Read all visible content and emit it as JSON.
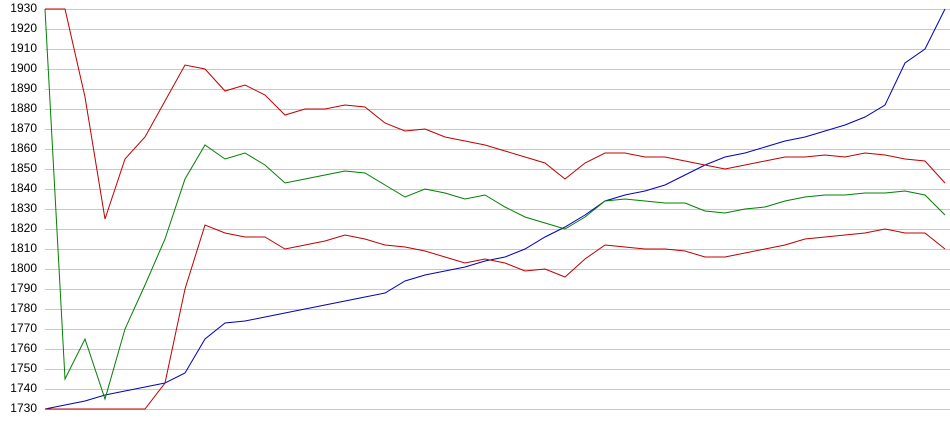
{
  "chart_data": {
    "type": "line",
    "categories": [
      null,
      null,
      null,
      null,
      null,
      null,
      null,
      null,
      null,
      null,
      null,
      null,
      null,
      null,
      null,
      null,
      null,
      null,
      null,
      null,
      null,
      null,
      null,
      null,
      null,
      null,
      null,
      null,
      null,
      null,
      null,
      null,
      null,
      null,
      null,
      null,
      null,
      null,
      null,
      null,
      null,
      null,
      null,
      null,
      null,
      null
    ],
    "series": [
      {
        "color": "#0000c0",
        "values": [
          1730,
          1732,
          1734,
          1737,
          1739,
          1741,
          1743,
          1748,
          1765,
          1773,
          1774,
          1776,
          1778,
          1780,
          1782,
          1784,
          1786,
          1788,
          1794,
          1797,
          1799,
          1801,
          1804,
          1806,
          1810,
          1816,
          1821,
          1827,
          1834,
          1837,
          1839,
          1842,
          1847,
          1852,
          1856,
          1858,
          1861,
          1864,
          1866,
          1869,
          1872,
          1876,
          1882,
          1903,
          1910,
          1930
        ]
      },
      {
        "color": "#008000",
        "values": [
          1930,
          1745,
          1765,
          1735,
          1770,
          1792,
          1815,
          1845,
          1862,
          1855,
          1858,
          1852,
          1843,
          1845,
          1847,
          1849,
          1848,
          1842,
          1836,
          1840,
          1838,
          1835,
          1837,
          1831,
          1826,
          1823,
          1820,
          1826,
          1834,
          1835,
          1834,
          1833,
          1833,
          1829,
          1828,
          1830,
          1831,
          1834,
          1836,
          1837,
          1837,
          1838,
          1838,
          1839,
          1837,
          1827
        ]
      },
      {
        "color": "#c00000",
        "values": [
          1930,
          1930,
          1886,
          1825,
          1855,
          1866,
          1884,
          1902,
          1900,
          1889,
          1892,
          1887,
          1877,
          1880,
          1880,
          1882,
          1881,
          1873,
          1869,
          1870,
          1866,
          1864,
          1862,
          1859,
          1856,
          1853,
          1845,
          1853,
          1858,
          1858,
          1856,
          1856,
          1854,
          1852,
          1850,
          1852,
          1854,
          1856,
          1856,
          1857,
          1856,
          1858,
          1857,
          1855,
          1854,
          1843
        ]
      },
      {
        "color": "#c00000",
        "values": [
          1730,
          1730,
          1730,
          1730,
          1730,
          1730,
          1743,
          1790,
          1822,
          1818,
          1816,
          1816,
          1810,
          1812,
          1814,
          1817,
          1815,
          1812,
          1811,
          1809,
          1806,
          1803,
          1805,
          1803,
          1799,
          1800,
          1796,
          1805,
          1812,
          1811,
          1810,
          1810,
          1809,
          1806,
          1806,
          1808,
          1810,
          1812,
          1815,
          1816,
          1817,
          1818,
          1820,
          1818,
          1818,
          1810
        ]
      }
    ],
    "ylim": [
      1730,
      1930
    ],
    "yticks": [
      1730,
      1740,
      1750,
      1760,
      1770,
      1780,
      1790,
      1800,
      1810,
      1820,
      1830,
      1840,
      1850,
      1860,
      1870,
      1880,
      1890,
      1900,
      1910,
      1920,
      1930
    ],
    "grid": true
  }
}
